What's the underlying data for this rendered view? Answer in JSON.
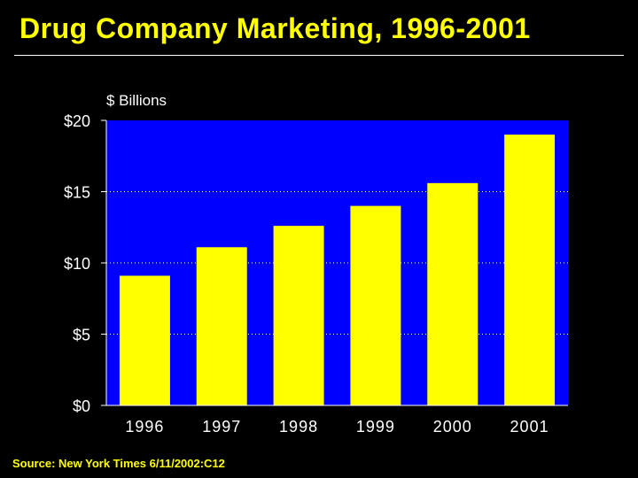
{
  "title": "Drug Company Marketing, 1996-2001",
  "source": "Source: New York Times 6/11/2002:C12",
  "colors": {
    "background": "#000000",
    "plot_area": "#0000FF",
    "bars": "#FFFF00",
    "text": "#FFFFFF",
    "title": "#FFFF00"
  },
  "chart_data": {
    "type": "bar",
    "title": "Drug Company Marketing, 1996-2001",
    "ylabel": "$ Billions",
    "xlabel": "",
    "categories": [
      "1996",
      "1997",
      "1998",
      "1999",
      "2000",
      "2001"
    ],
    "values": [
      9.1,
      11.1,
      12.6,
      14.0,
      15.6,
      19.0
    ],
    "ylim": [
      0,
      20
    ],
    "yticks": [
      0,
      5,
      10,
      15,
      20
    ],
    "ytick_labels": [
      "$0",
      "$5",
      "$10",
      "$15",
      "$20"
    ],
    "grid": "horizontal dotted",
    "legend": "none"
  }
}
